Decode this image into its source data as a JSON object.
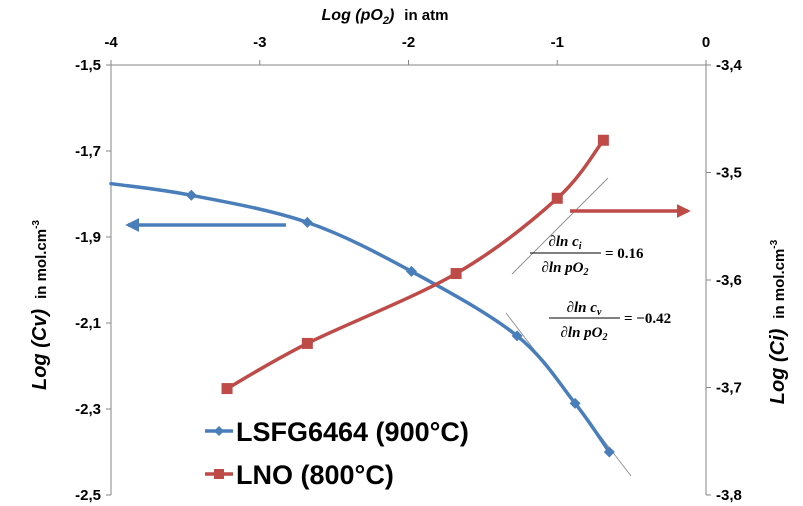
{
  "chart_data": {
    "type": "line",
    "title": "",
    "x_axis": {
      "label_main": "Log (pO",
      "label_sub": "2",
      "label_close": ")",
      "label_unit": "in atm",
      "range": [
        -4,
        0
      ],
      "ticks": [
        -4,
        -3,
        -2,
        -1,
        0
      ],
      "tick_labels": [
        "-4",
        "-3",
        "-2",
        "-1",
        "0"
      ],
      "position": "top"
    },
    "y_left": {
      "label_main": "Log (Cv)",
      "label_unit": "in mol.cm",
      "label_sup": "-3",
      "range": [
        -2.5,
        -1.5
      ],
      "ticks": [
        -1.5,
        -1.7,
        -1.9,
        -2.1,
        -2.3,
        -2.5
      ],
      "tick_labels": [
        "-1,5",
        "-1,7",
        "-1,9",
        "-2,1",
        "-2,3",
        "-2,5"
      ]
    },
    "y_right": {
      "label_main": "Log (Ci)",
      "label_unit": "in mol.cm",
      "label_sup": "-3",
      "range": [
        -3.8,
        -3.4
      ],
      "ticks": [
        -3.4,
        -3.5,
        -3.6,
        -3.7,
        -3.8
      ],
      "tick_labels": [
        "-3,4",
        "-3,5",
        "-3,6",
        "-3,7",
        "-3,8"
      ]
    },
    "series": [
      {
        "name": "LSFG6464 (900°C)",
        "axis": "left",
        "color": "#4a7ebb",
        "marker": "diamond",
        "x": [
          -3.46,
          -2.68,
          -1.98,
          -1.27,
          -0.88,
          -0.65
        ],
        "y": [
          -1.803,
          -1.866,
          -1.98,
          -2.13,
          -2.287,
          -2.4
        ]
      },
      {
        "name": "LNO (800°C)",
        "axis": "right",
        "color": "#be4b48",
        "marker": "square",
        "x": [
          -3.22,
          -2.68,
          -1.68,
          -1.0,
          -0.69
        ],
        "y": [
          -3.701,
          -3.659,
          -3.594,
          -3.524,
          -3.47
        ]
      }
    ],
    "legend_position": "bottom-left",
    "grid": false,
    "annotations": {
      "equation_ci": {
        "num": "∂ln c",
        "num_sub": "i",
        "den": "∂ln pO",
        "den_sub": "2",
        "value": "= 0.16"
      },
      "equation_cv": {
        "num": "∂ln c",
        "num_sub": "v",
        "den": "∂ln pO",
        "den_sub": "2",
        "value": "= −0.42"
      }
    }
  }
}
